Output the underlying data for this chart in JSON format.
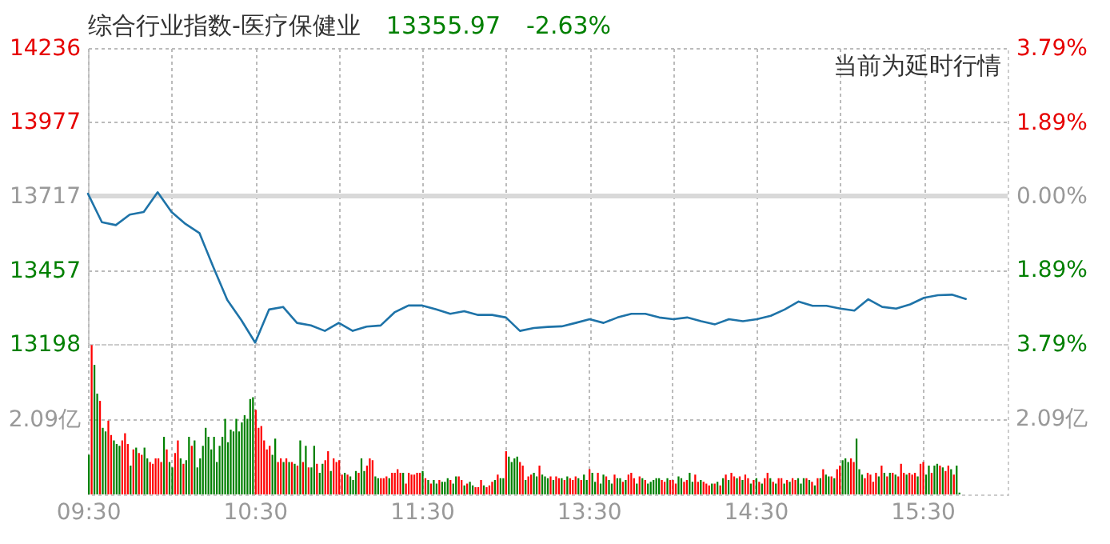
{
  "chart_data": [
    {
      "type": "line",
      "title": "综合行业指数-医疗保健业",
      "annotations": [
        "13355.97",
        "-2.63%",
        "当前为延时行情"
      ],
      "categories": [
        null,
        null,
        null,
        null,
        null,
        null,
        null,
        null,
        null,
        null,
        null,
        null,
        null,
        null,
        null,
        null,
        null,
        null,
        null,
        null,
        null,
        null,
        null,
        null,
        null,
        null,
        null,
        null,
        null,
        null,
        null,
        null,
        null,
        null,
        null,
        null,
        null,
        null,
        null,
        null,
        null,
        null,
        null,
        null,
        null,
        null,
        null,
        null,
        null,
        null,
        null,
        null,
        null,
        null,
        null,
        null,
        null,
        null,
        null,
        null,
        null,
        null,
        null,
        null,
        null,
        null,
        null
      ],
      "series": [
        {
          "color": "#1e73a8",
          "values": [
            13725,
            13625,
            13615,
            13652,
            13661,
            13730,
            13661,
            13619,
            13587,
            13467,
            13352,
            13282,
            13203,
            13319,
            13328,
            13272,
            13263,
            13244,
            13272,
            13244,
            13259,
            13263,
            13309,
            13333,
            13333,
            13319,
            13304,
            13313,
            13300,
            13300,
            13291,
            13244,
            13254,
            13258,
            13260,
            13272,
            13285,
            13272,
            13291,
            13304,
            13304,
            13291,
            13285,
            13291,
            13278,
            13267,
            13285,
            13278,
            13285,
            13297,
            13319,
            13347,
            13332,
            13332,
            13322,
            13315,
            13355,
            13328,
            13322,
            13337,
            13360,
            13369,
            13371,
            13356,
            null,
            null,
            null
          ]
        }
      ],
      "ylim": [
        13198,
        14236
      ],
      "yticks": [
        13198,
        13457,
        13717,
        13977,
        14236
      ],
      "y2lim": [
        -3.79,
        3.79
      ],
      "y2ticks": [
        {
          "value": -3.79,
          "label": "3.79%"
        },
        {
          "value": -1.89,
          "label": "1.89%"
        },
        {
          "value": 0,
          "label": "0.00%"
        },
        {
          "value": 1.89,
          "label": "1.89%"
        },
        {
          "value": 3.79,
          "label": "3.79%"
        }
      ],
      "ref_lines": [
        {
          "axis": "y2",
          "value": 0,
          "color": "#d9d9d9"
        }
      ],
      "grid": true,
      "tick_labels": "y"
    },
    {
      "type": "bar",
      "categories": [
        "09:30",
        null,
        null,
        null,
        null,
        null,
        null,
        null,
        null,
        null,
        null,
        null,
        null,
        null,
        null,
        null,
        null,
        null,
        null,
        null,
        null,
        null,
        null,
        null,
        null,
        null,
        null,
        null,
        null,
        null,
        null,
        null,
        null,
        null,
        null,
        null,
        null,
        null,
        null,
        null,
        null,
        null,
        null,
        null,
        null,
        null,
        null,
        null,
        null,
        null,
        null,
        null,
        null,
        null,
        null,
        null,
        null,
        null,
        null,
        null,
        "10:30",
        null,
        null,
        null,
        null,
        null,
        null,
        null,
        null,
        null,
        null,
        null,
        null,
        null,
        null,
        null,
        null,
        null,
        null,
        null,
        null,
        null,
        null,
        null,
        null,
        null,
        null,
        null,
        null,
        null,
        null,
        null,
        null,
        null,
        null,
        null,
        null,
        null,
        null,
        null,
        null,
        null,
        null,
        null,
        null,
        null,
        null,
        null,
        null,
        null,
        null,
        null,
        null,
        null,
        null,
        null,
        null,
        null,
        null,
        null,
        "11:30",
        null,
        null,
        null,
        null,
        null,
        null,
        null,
        null,
        null,
        null,
        null,
        null,
        null,
        null,
        null,
        null,
        null,
        null,
        null,
        null,
        null,
        null,
        null,
        null,
        null,
        null,
        null,
        null,
        null,
        null,
        null,
        null,
        null,
        null,
        null,
        null,
        null,
        null,
        null,
        null,
        null,
        null,
        null,
        null,
        null,
        null,
        null,
        null,
        null,
        null,
        null,
        null,
        null,
        null,
        null,
        null,
        null,
        null,
        null,
        "13:30",
        null,
        null,
        null,
        null,
        null,
        null,
        null,
        null,
        null,
        null,
        null,
        null,
        null,
        null,
        null,
        null,
        null,
        null,
        null,
        null,
        null,
        null,
        null,
        null,
        null,
        null,
        null,
        null,
        null,
        null,
        null,
        null,
        null,
        null,
        null,
        null,
        null,
        null,
        null,
        null,
        null,
        null,
        null,
        null,
        null,
        null,
        null,
        null,
        null,
        null,
        null,
        null,
        null,
        null,
        null,
        null,
        null,
        null,
        null,
        "14:30",
        null,
        null,
        null,
        null,
        null,
        null,
        null,
        null,
        null,
        null,
        null,
        null,
        null,
        null,
        null,
        null,
        null,
        null,
        null,
        null,
        null,
        null,
        null,
        null,
        null,
        null,
        null,
        null,
        null,
        null,
        null,
        null,
        null,
        null,
        null,
        null,
        null,
        null,
        null,
        null,
        null,
        null,
        null,
        null,
        null,
        null,
        null,
        null,
        null,
        null,
        null,
        null,
        null,
        null,
        null,
        null,
        null,
        null,
        null,
        "15:30",
        null,
        null,
        null,
        null,
        null,
        null,
        null,
        null,
        null,
        null,
        null,
        null,
        null,
        null,
        null,
        null,
        null,
        null,
        null,
        null,
        null,
        null,
        null,
        null,
        null,
        null,
        null,
        null,
        null,
        null
      ],
      "values": [
        1.1,
        4.15,
        3.6,
        2.8,
        2.6,
        1.85,
        1.75,
        2.05,
        1.65,
        1.5,
        1.4,
        1.35,
        1.5,
        1.7,
        1.4,
        0.8,
        1.25,
        1.3,
        1.15,
        1.1,
        1.3,
        1.0,
        0.9,
        0.85,
        1.0,
        1.0,
        0.9,
        1.6,
        1.25,
        0.9,
        0.75,
        1.15,
        1.5,
        1.0,
        0.85,
        0.95,
        1.6,
        1.35,
        1.5,
        0.75,
        1.0,
        1.35,
        1.85,
        1.6,
        1.25,
        1.6,
        0.9,
        1.35,
        1.6,
        2.1,
        1.45,
        1.8,
        1.75,
        2.1,
        1.75,
        2.0,
        2.2,
        2.1,
        2.65,
        2.7,
        2.35,
        1.85,
        1.9,
        1.5,
        1.25,
        1.35,
        1.1,
        1.55,
        0.9,
        1.0,
        0.9,
        1.0,
        0.9,
        0.9,
        0.85,
        0.8,
        1.5,
        0.9,
        1.35,
        0.75,
        0.75,
        1.35,
        0.85,
        0.6,
        0.85,
        0.95,
        1.2,
        0.65,
        1.0,
        0.9,
        0.95,
        0.55,
        0.6,
        0.55,
        0.5,
        0.4,
        0.65,
        0.6,
        1.0,
        0.65,
        0.8,
        1.0,
        0.95,
        0.5,
        0.45,
        0.45,
        0.45,
        0.5,
        0.45,
        0.6,
        0.6,
        0.7,
        0.6,
        0.6,
        0.3,
        0.6,
        0.55,
        0.55,
        0.6,
        0.6,
        0.65,
        0.45,
        0.4,
        0.3,
        0.4,
        0.3,
        0.4,
        0.35,
        0.35,
        0.45,
        0.4,
        0.3,
        0.5,
        0.5,
        0.4,
        0.25,
        0.3,
        0.35,
        0.25,
        0.2,
        0.2,
        0.4,
        0.25,
        0.2,
        0.25,
        0.35,
        0.4,
        0.55,
        0.45,
        0.45,
        1.2,
        1.05,
        0.9,
        1.0,
        1.05,
        0.9,
        0.8,
        0.4,
        0.5,
        0.55,
        0.6,
        0.5,
        0.8,
        0.55,
        0.5,
        0.45,
        0.5,
        0.4,
        0.5,
        0.45,
        0.45,
        0.4,
        0.5,
        0.45,
        0.4,
        0.5,
        0.45,
        0.4,
        0.55,
        0.4,
        0.7,
        0.6,
        0.35,
        0.6,
        0.3,
        0.55,
        0.5,
        0.4,
        0.3,
        0.55,
        0.45,
        0.45,
        0.35,
        0.4,
        0.55,
        0.6,
        0.45,
        0.3,
        0.5,
        0.45,
        0.4,
        0.3,
        0.35,
        0.4,
        0.45,
        0.45,
        0.4,
        0.35,
        0.45,
        0.4,
        0.4,
        0.3,
        0.5,
        0.45,
        0.35,
        0.4,
        0.6,
        0.35,
        0.55,
        0.35,
        0.4,
        0.35,
        0.3,
        0.25,
        0.3,
        0.3,
        0.35,
        0.25,
        0.45,
        0.55,
        0.4,
        0.6,
        0.5,
        0.45,
        0.5,
        0.4,
        0.55,
        0.45,
        0.3,
        0.4,
        0.45,
        0.35,
        0.3,
        0.45,
        0.6,
        0.45,
        0.35,
        0.3,
        0.45,
        0.45,
        0.3,
        0.4,
        0.35,
        0.45,
        0.4,
        0.45,
        0.3,
        0.45,
        0.45,
        0.4,
        0.35,
        0.25,
        0.45,
        0.45,
        0.7,
        0.55,
        0.5,
        0.5,
        0.45,
        0.7,
        0.8,
        0.95,
        1.0,
        0.9,
        1.0,
        0.9,
        1.55,
        0.7,
        0.55,
        0.45,
        0.6,
        0.55,
        0.35,
        0.6,
        0.5,
        0.8,
        0.6,
        0.5,
        0.6,
        0.6,
        0.55,
        0.5,
        0.85,
        0.6,
        0.55,
        0.6,
        0.55,
        0.6,
        0.5,
        0.85,
        0.9,
        0.55,
        0.8,
        0.6,
        0.8,
        0.85,
        0.8,
        0.75,
        0.65,
        0.8,
        0.7,
        0.55,
        0.8,
        0.05,
        null,
        null,
        null,
        null,
        null,
        null,
        null,
        null,
        null,
        null,
        null,
        null,
        null,
        null,
        null,
        null,
        null
      ],
      "colors": [
        "#008000",
        "#ff0000",
        "#008000",
        "#008000",
        "#ff0000",
        "#008000",
        "#008000",
        "#ff0000",
        "#ff0000",
        "#008000",
        "#008000",
        "#008000",
        "#ff0000",
        "#ff0000",
        "#ff0000",
        "#008000",
        "#ff0000",
        "#008000",
        "#ff0000",
        "#ff0000",
        "#008000",
        "#008000",
        "#ff0000",
        "#ff0000",
        "#ff0000",
        "#ff0000",
        "#ff0000",
        "#008000",
        "#ff0000",
        "#008000",
        "#008000",
        "#ff0000",
        "#ff0000",
        "#008000",
        "#ff0000",
        "#008000",
        "#008000",
        "#ff0000",
        "#008000",
        "#008000",
        "#008000",
        "#008000",
        "#008000",
        "#008000",
        "#008000",
        "#008000",
        "#008000",
        "#008000",
        "#008000",
        "#008000",
        "#008000",
        "#008000",
        "#008000",
        "#008000",
        "#008000",
        "#008000",
        "#008000",
        "#008000",
        "#008000",
        "#008000",
        "#ff0000",
        "#ff0000",
        "#ff0000",
        "#ff0000",
        "#ff0000",
        "#ff0000",
        "#008000",
        "#008000",
        "#ff0000",
        "#ff0000",
        "#008000",
        "#ff0000",
        "#008000",
        "#ff0000",
        "#008000",
        "#ff0000",
        "#008000",
        "#ff0000",
        "#008000",
        "#ff0000",
        "#008000",
        "#008000",
        "#ff0000",
        "#008000",
        "#008000",
        "#ff0000",
        "#ff0000",
        "#008000",
        "#ff0000",
        "#ff0000",
        "#ff0000",
        "#ff0000",
        "#008000",
        "#ff0000",
        "#008000",
        "#008000",
        "#008000",
        "#ff0000",
        "#008000",
        "#008000",
        "#ff0000",
        "#ff0000",
        "#ff0000",
        "#008000",
        "#008000",
        "#ff0000",
        "#ff0000",
        "#ff0000",
        "#008000",
        "#ff0000",
        "#ff0000",
        "#ff0000",
        "#ff0000",
        "#008000",
        "#ff0000",
        "#ff0000",
        "#ff0000",
        "#ff0000",
        "#ff0000",
        "#ff0000",
        "#008000",
        "#ff0000",
        "#008000",
        "#ff0000",
        "#008000",
        "#008000",
        "#ff0000",
        "#008000",
        "#008000",
        "#008000",
        "#ff0000",
        "#008000",
        "#008000",
        "#ff0000",
        "#ff0000",
        "#008000",
        "#ff0000",
        "#008000",
        "#008000",
        "#ff0000",
        "#ff0000",
        "#ff0000",
        "#008000",
        "#ff0000",
        "#ff0000",
        "#ff0000",
        "#008000",
        "#ff0000",
        "#008000",
        "#008000",
        "#ff0000",
        "#008000",
        "#008000",
        "#008000",
        "#008000",
        "#ff0000",
        "#ff0000",
        "#008000",
        "#ff0000",
        "#ff0000",
        "#008000",
        "#008000",
        "#ff0000",
        "#008000",
        "#008000",
        "#008000",
        "#ff0000",
        "#008000",
        "#ff0000",
        "#ff0000",
        "#008000",
        "#ff0000",
        "#008000",
        "#ff0000",
        "#ff0000",
        "#ff0000",
        "#008000",
        "#ff0000",
        "#008000",
        "#008000",
        "#ff0000",
        "#008000",
        "#008000",
        "#ff0000",
        "#008000",
        "#008000",
        "#ff0000",
        "#008000",
        "#008000",
        "#ff0000",
        "#008000",
        "#008000",
        "#ff0000",
        "#008000",
        "#ff0000",
        "#ff0000",
        "#ff0000",
        "#008000",
        "#ff0000",
        "#008000",
        "#ff0000",
        "#008000",
        "#008000",
        "#008000",
        "#008000",
        "#008000",
        "#ff0000",
        "#ff0000",
        "#008000",
        "#ff0000",
        "#ff0000",
        "#ff0000",
        "#008000",
        "#008000",
        "#ff0000",
        "#ff0000",
        "#008000",
        "#008000",
        "#ff0000",
        "#ff0000",
        "#008000",
        "#ff0000",
        "#ff0000",
        "#ff0000",
        "#008000",
        "#ff0000",
        "#008000",
        "#ff0000",
        "#008000",
        "#ff0000",
        "#008000",
        "#ff0000",
        "#ff0000",
        "#008000",
        "#ff0000",
        "#008000",
        "#ff0000",
        "#ff0000",
        "#008000",
        "#ff0000",
        "#008000",
        "#ff0000",
        "#008000",
        "#ff0000",
        "#ff0000",
        "#008000",
        "#ff0000",
        "#008000",
        "#ff0000",
        "#ff0000",
        "#008000",
        "#ff0000",
        "#008000",
        "#ff0000",
        "#ff0000",
        "#008000",
        "#008000",
        "#008000",
        "#ff0000",
        "#008000",
        "#ff0000",
        "#008000",
        "#ff0000",
        "#008000",
        "#ff0000",
        "#008000",
        "#008000",
        "#ff0000",
        "#008000",
        "#ff0000",
        "#ff0000",
        "#008000",
        "#008000",
        "#008000",
        "#ff0000",
        "#ff0000",
        "#008000",
        "#008000",
        "#008000",
        "#ff0000",
        "#ff0000",
        "#ff0000",
        "#ff0000",
        "#ff0000",
        "#008000",
        "#ff0000",
        "#008000",
        "#ff0000",
        "#008000",
        "#ff0000",
        "#008000",
        "#ff0000",
        "#ff0000",
        "#ff0000",
        "#008000",
        "#ff0000",
        "#ff0000",
        "#ff0000",
        "#008000",
        "#ff0000",
        "#ff0000",
        "#008000",
        "#008000",
        "#ff0000",
        "#008000",
        "#008000",
        "#ff0000",
        "#008000",
        "#ff0000",
        "#ff0000",
        "#008000",
        "#ff0000",
        "#008000",
        "#008000",
        null,
        null,
        null,
        null,
        null,
        null,
        null,
        null,
        null,
        null,
        null,
        null,
        null,
        null,
        null,
        null,
        null
      ],
      "ylim": [
        0,
        4.18
      ],
      "yticks": [
        {
          "value": 2.09,
          "label": "2.09亿"
        }
      ],
      "annotations": [
        "2.09亿"
      ],
      "grid": true
    }
  ]
}
